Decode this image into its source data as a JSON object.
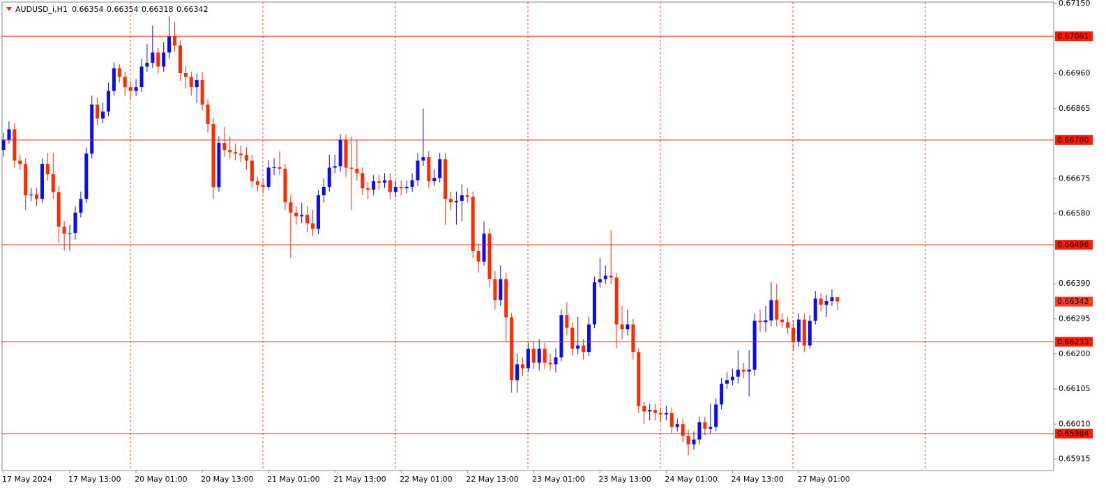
{
  "chart_data": {
    "type": "candlestick",
    "title": "AUDUSD_i,H1",
    "colors": {
      "up": "#0c0cf0",
      "down": "#ff2a00",
      "level": "#ff1a00"
    },
    "categories": [
      "17 May 2024",
      null,
      null,
      null,
      null,
      null,
      null,
      null,
      null,
      null,
      null,
      null,
      "17 May 13:00",
      null,
      null,
      null,
      null,
      null,
      null,
      null,
      null,
      null,
      null,
      null,
      "20 May 01:00",
      null,
      null,
      null,
      null,
      null,
      null,
      null,
      null,
      null,
      null,
      null,
      "20 May 13:00",
      null,
      null,
      null,
      null,
      null,
      null,
      null,
      null,
      null,
      null,
      null,
      "21 May 01:00",
      null,
      null,
      null,
      null,
      null,
      null,
      null,
      null,
      null,
      null,
      null,
      "21 May 13:00",
      null,
      null,
      null,
      null,
      null,
      null,
      null,
      null,
      null,
      null,
      null,
      "22 May 01:00",
      null,
      null,
      null,
      null,
      null,
      null,
      null,
      null,
      null,
      null,
      null,
      "22 May 13:00",
      null,
      null,
      null,
      null,
      null,
      null,
      null,
      null,
      null,
      null,
      null,
      "23 May 01:00",
      null,
      null,
      null,
      null,
      null,
      null,
      null,
      null,
      null,
      null,
      null,
      "23 May 13:00",
      null,
      null,
      null,
      null,
      null,
      null,
      null,
      null,
      null,
      null,
      null,
      "24 May 01:00",
      null,
      null,
      null,
      null,
      null,
      null,
      null,
      null,
      null,
      null,
      null,
      "24 May 13:00",
      null,
      null,
      null,
      null,
      null,
      null,
      null,
      null,
      null,
      null,
      null,
      "27 May 01:00",
      null,
      null,
      null,
      null,
      null,
      null,
      null
    ],
    "open": [
      0.66753,
      0.66781,
      0.66809,
      0.66724,
      0.66715,
      0.6663,
      0.66632,
      0.6662,
      0.66715,
      0.66687,
      0.66639,
      0.66545,
      0.66526,
      0.66528,
      0.66583,
      0.6662,
      0.66743,
      0.66876,
      0.66838,
      0.66857,
      0.66913,
      0.66974,
      0.66951,
      0.66923,
      0.66913,
      0.66923,
      0.66979,
      0.66989,
      0.67017,
      0.66979,
      0.67017,
      0.67061,
      0.67036,
      0.66961,
      0.66951,
      0.66923,
      0.66942,
      0.66876,
      0.66823,
      0.66652,
      0.66772,
      0.66753,
      0.66747,
      0.66743,
      0.66739,
      0.66724,
      0.66668,
      0.66658,
      0.66653,
      0.66705,
      0.66706,
      0.66702,
      0.66611,
      0.66583,
      0.66573,
      0.66577,
      0.66554,
      0.66539,
      0.6663,
      0.66653,
      0.66705,
      0.66709,
      0.66781,
      0.66705,
      0.66702,
      0.6669,
      0.66649,
      0.66645,
      0.66668,
      0.66664,
      0.66671,
      0.66639,
      0.66653,
      0.66649,
      0.66653,
      0.66671,
      0.66724,
      0.66734,
      0.66668,
      0.66677,
      0.66728,
      0.6662,
      0.66611,
      0.66615,
      0.6663,
      0.66626,
      0.66479,
      0.6645,
      0.66526,
      0.66403,
      0.66346,
      0.66403,
      0.66299,
      0.66129,
      0.66172,
      0.66161,
      0.66214,
      0.66176,
      0.66214,
      0.66176,
      0.66172,
      0.66191,
      0.66305,
      0.66271,
      0.66214,
      0.66223,
      0.66205,
      0.6628,
      0.66394,
      0.66403,
      0.66412,
      0.66407,
      0.6628,
      0.66267,
      0.6628,
      0.66205,
      0.66059,
      0.66044,
      0.66048,
      0.6604,
      0.66036,
      0.6604,
      0.66002,
      0.6601,
      0.65978,
      0.65955,
      0.65968,
      0.66015,
      0.65997,
      0.66002,
      0.66063,
      0.66119,
      0.66129,
      0.66138,
      0.66157,
      0.66152,
      0.66157,
      0.6629,
      0.66286,
      0.66291,
      0.66346,
      0.66293,
      0.66286,
      0.66271,
      0.66233,
      0.66293,
      0.66223,
      0.6629,
      0.6635,
      0.66333,
      0.66343,
      0.66354
    ],
    "high": [
      0.668,
      0.6683,
      0.66825,
      0.6674,
      0.6673,
      0.6665,
      0.6665,
      0.6673,
      0.66745,
      0.66745,
      0.66655,
      0.6656,
      0.6655,
      0.666,
      0.6664,
      0.6676,
      0.669,
      0.66895,
      0.6688,
      0.66935,
      0.6699,
      0.66985,
      0.66965,
      0.6694,
      0.66945,
      0.67,
      0.6704,
      0.6709,
      0.6703,
      0.67045,
      0.67115,
      0.671,
      0.6705,
      0.6698,
      0.66965,
      0.6696,
      0.66965,
      0.6689,
      0.6684,
      0.6679,
      0.66815,
      0.6679,
      0.6677,
      0.66765,
      0.6676,
      0.6674,
      0.6668,
      0.66675,
      0.66725,
      0.6673,
      0.6675,
      0.66715,
      0.6663,
      0.666,
      0.6661,
      0.666,
      0.6659,
      0.66645,
      0.66675,
      0.6674,
      0.6674,
      0.66795,
      0.66795,
      0.6679,
      0.6678,
      0.66705,
      0.66665,
      0.66685,
      0.66685,
      0.6669,
      0.6669,
      0.6667,
      0.6667,
      0.6667,
      0.6669,
      0.66745,
      0.66865,
      0.6675,
      0.667,
      0.66745,
      0.66745,
      0.6664,
      0.6664,
      0.6666,
      0.6665,
      0.6664,
      0.665,
      0.6656,
      0.6654,
      0.66425,
      0.6644,
      0.6642,
      0.6631,
      0.662,
      0.6619,
      0.6623,
      0.66235,
      0.6624,
      0.6623,
      0.662,
      0.66215,
      0.6632,
      0.6634,
      0.66285,
      0.663,
      0.6624,
      0.663,
      0.6641,
      0.6646,
      0.6644,
      0.66535,
      0.6642,
      0.6633,
      0.6632,
      0.66295,
      0.66215,
      0.6607,
      0.66065,
      0.66065,
      0.66055,
      0.6606,
      0.66055,
      0.66025,
      0.66025,
      0.65995,
      0.6599,
      0.6603,
      0.6603,
      0.66065,
      0.6608,
      0.66135,
      0.6615,
      0.6616,
      0.6621,
      0.66175,
      0.6621,
      0.6631,
      0.6632,
      0.6633,
      0.66395,
      0.6639,
      0.6631,
      0.663,
      0.6629,
      0.6631,
      0.6631,
      0.66305,
      0.6637,
      0.66365,
      0.6636,
      0.66375,
      0.66354
    ],
    "low": [
      0.66735,
      0.6677,
      0.66705,
      0.667,
      0.6659,
      0.66615,
      0.666,
      0.6661,
      0.6667,
      0.6662,
      0.665,
      0.6648,
      0.6648,
      0.6651,
      0.6657,
      0.6661,
      0.6673,
      0.6682,
      0.66825,
      0.66845,
      0.669,
      0.66935,
      0.669,
      0.6689,
      0.669,
      0.6691,
      0.66965,
      0.66975,
      0.6696,
      0.66965,
      0.67,
      0.6702,
      0.6694,
      0.6692,
      0.669,
      0.6688,
      0.6686,
      0.668,
      0.6662,
      0.6664,
      0.66735,
      0.6673,
      0.66725,
      0.6672,
      0.667,
      0.6665,
      0.6664,
      0.66635,
      0.66645,
      0.66685,
      0.66685,
      0.6659,
      0.6646,
      0.6655,
      0.66555,
      0.6653,
      0.6652,
      0.66525,
      0.6661,
      0.6664,
      0.6669,
      0.66695,
      0.6668,
      0.6659,
      0.6667,
      0.6663,
      0.6662,
      0.6663,
      0.66645,
      0.6665,
      0.6662,
      0.66625,
      0.6663,
      0.66635,
      0.6664,
      0.66655,
      0.6671,
      0.6665,
      0.66655,
      0.66665,
      0.6655,
      0.6659,
      0.6655,
      0.6656,
      0.6661,
      0.6646,
      0.6642,
      0.6644,
      0.6638,
      0.6632,
      0.6633,
      0.66235,
      0.66095,
      0.66095,
      0.6614,
      0.6615,
      0.6616,
      0.66155,
      0.6616,
      0.66155,
      0.6615,
      0.6618,
      0.6625,
      0.66195,
      0.662,
      0.66185,
      0.66195,
      0.6627,
      0.6638,
      0.6639,
      0.6639,
      0.66215,
      0.6624,
      0.6625,
      0.66185,
      0.6604,
      0.6601,
      0.6602,
      0.6602,
      0.66015,
      0.6602,
      0.65985,
      0.6599,
      0.6596,
      0.65925,
      0.6594,
      0.65955,
      0.6598,
      0.65985,
      0.6599,
      0.6605,
      0.66105,
      0.66115,
      0.6612,
      0.66135,
      0.66085,
      0.6614,
      0.6626,
      0.6626,
      0.66275,
      0.66275,
      0.6627,
      0.66255,
      0.66208,
      0.6622,
      0.66205,
      0.66215,
      0.6628,
      0.66315,
      0.663,
      0.6633,
      0.66318
    ],
    "close": [
      0.66781,
      0.66809,
      0.66724,
      0.66715,
      0.6663,
      0.66632,
      0.6662,
      0.66715,
      0.66687,
      0.66639,
      0.66545,
      0.66526,
      0.66528,
      0.66583,
      0.6662,
      0.66743,
      0.66876,
      0.66838,
      0.66857,
      0.66913,
      0.66974,
      0.66951,
      0.66923,
      0.66913,
      0.66923,
      0.66979,
      0.66989,
      0.67017,
      0.66979,
      0.67017,
      0.67061,
      0.67036,
      0.66961,
      0.66951,
      0.66923,
      0.66942,
      0.66876,
      0.66823,
      0.66652,
      0.66772,
      0.66753,
      0.66747,
      0.66743,
      0.66739,
      0.66724,
      0.66668,
      0.66658,
      0.66653,
      0.66705,
      0.66706,
      0.66702,
      0.66611,
      0.66583,
      0.66573,
      0.66577,
      0.66554,
      0.66539,
      0.6663,
      0.66653,
      0.66705,
      0.66709,
      0.66781,
      0.66705,
      0.66702,
      0.6669,
      0.66649,
      0.66645,
      0.66668,
      0.66664,
      0.66671,
      0.66639,
      0.66653,
      0.66649,
      0.66653,
      0.66671,
      0.66724,
      0.66734,
      0.66668,
      0.66677,
      0.66728,
      0.6662,
      0.66611,
      0.66615,
      0.6663,
      0.66626,
      0.66479,
      0.6645,
      0.66526,
      0.66403,
      0.66346,
      0.66403,
      0.66299,
      0.66129,
      0.66172,
      0.66161,
      0.66214,
      0.66176,
      0.66214,
      0.66176,
      0.66172,
      0.66191,
      0.66305,
      0.66271,
      0.66214,
      0.66223,
      0.66205,
      0.6628,
      0.66394,
      0.66403,
      0.66412,
      0.66407,
      0.6628,
      0.66267,
      0.6628,
      0.66205,
      0.66059,
      0.66044,
      0.66048,
      0.6604,
      0.66036,
      0.6604,
      0.66002,
      0.6601,
      0.65978,
      0.65955,
      0.65968,
      0.66015,
      0.65997,
      0.66002,
      0.66063,
      0.66119,
      0.66129,
      0.66138,
      0.66157,
      0.66152,
      0.66157,
      0.6629,
      0.66286,
      0.66291,
      0.66346,
      0.66293,
      0.66286,
      0.66271,
      0.66233,
      0.66293,
      0.66223,
      0.6629,
      0.6635,
      0.66333,
      0.66343,
      0.66354,
      0.66342
    ],
    "ylim": [
      0.65884,
      0.6715
    ],
    "yticks": [
      {
        "value": 0.6715,
        "label": "0.67150"
      },
      {
        "value": 0.6696,
        "label": "0.66960"
      },
      0.66865,
      0.66675,
      {
        "value": 0.6658,
        "label": "0.66580"
      },
      {
        "value": 0.6639,
        "label": "0.66390"
      },
      0.66295,
      {
        "value": 0.662,
        "label": "0.66200"
      },
      0.66105,
      {
        "value": 0.6601,
        "label": "0.66010"
      },
      0.65915
    ],
    "levels": [
      0.67061,
      {
        "value": 0.6678,
        "label": "0.66780"
      },
      0.66496,
      0.66233,
      0.65984
    ]
  }
}
